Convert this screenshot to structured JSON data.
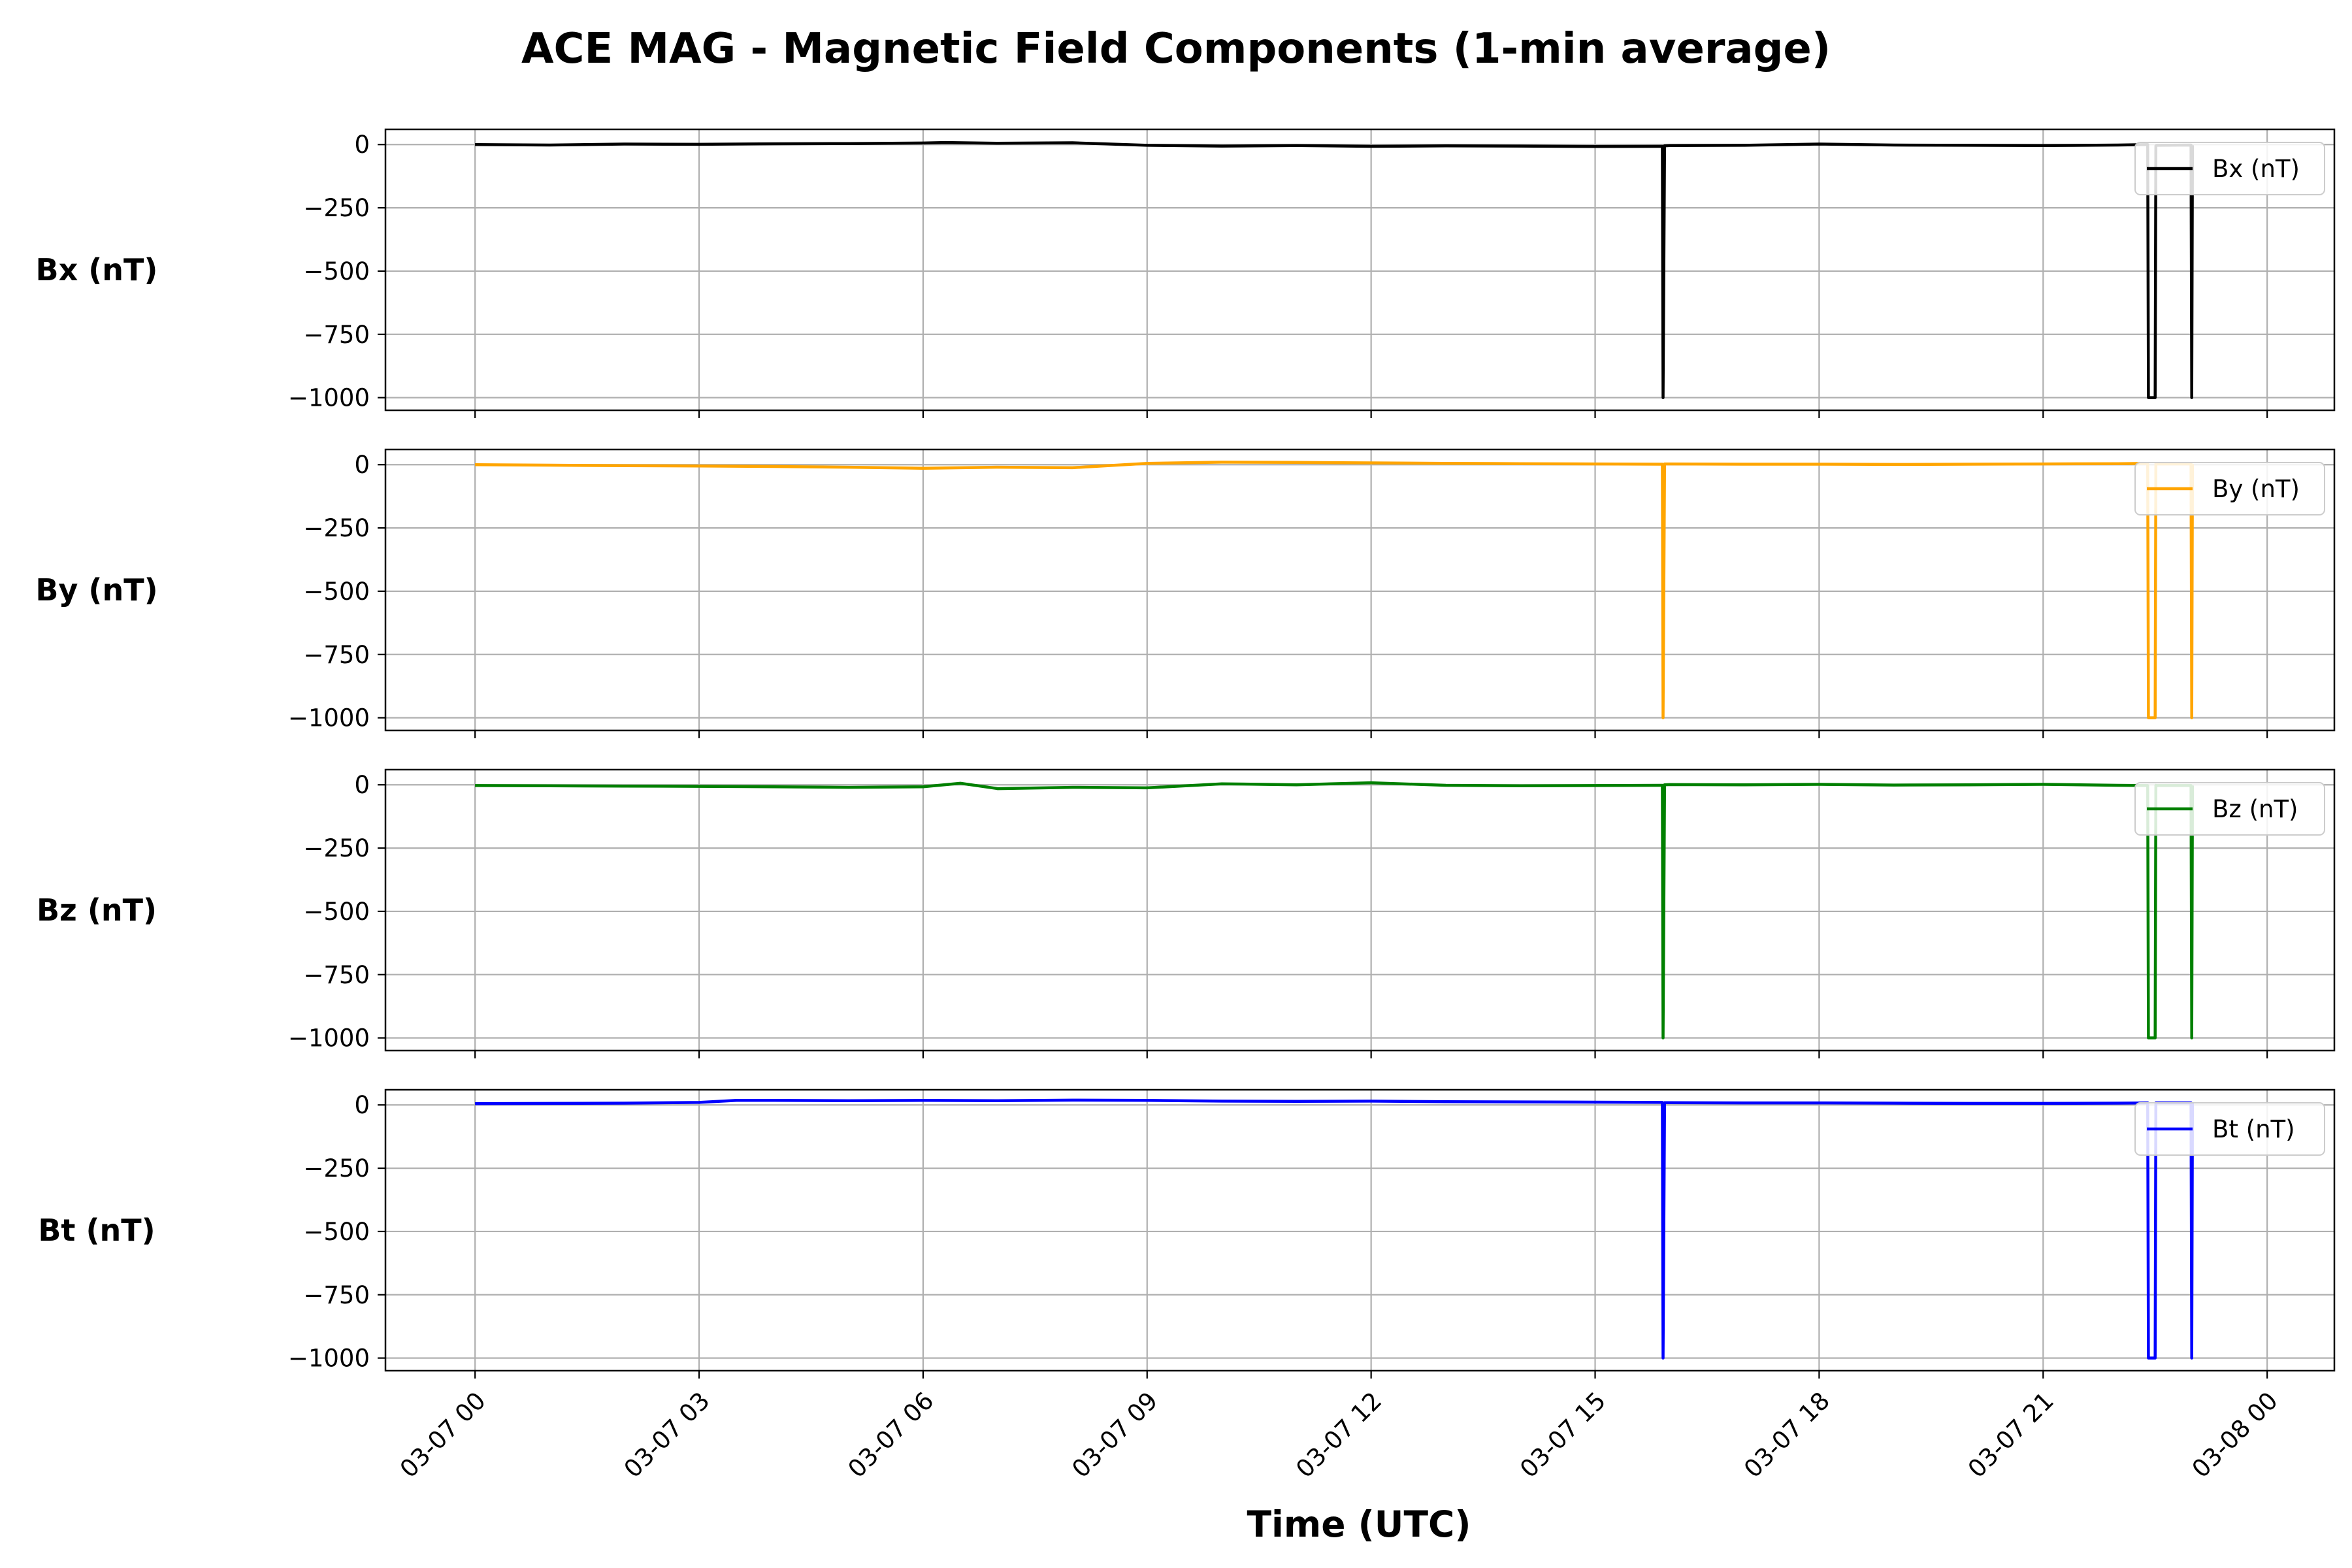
{
  "chart_data": {
    "type": "line",
    "title": "ACE MAG - Magnetic Field Components (1-min average)",
    "xlabel": "Time (UTC)",
    "x_ticks": [
      "03-07 00",
      "03-07 03",
      "03-07 06",
      "03-07 09",
      "03-07 12",
      "03-07 15",
      "03-07 18",
      "03-07 21",
      "03-08 00"
    ],
    "x_range_hours": [
      -1.2,
      24.9
    ],
    "y_ticks": [
      0,
      -250,
      -500,
      -750,
      -1000
    ],
    "ylim": [
      -1050,
      60
    ],
    "grid": true,
    "legend_position": "upper right",
    "panels": [
      {
        "ylabel": "Bx (nT)",
        "color": "#000000",
        "series": [
          {
            "name": "Bx (nT)",
            "x_hours": [
              0,
              1,
              2,
              3,
              4,
              5,
              6,
              6.3,
              7,
              8,
              9,
              10,
              11,
              12,
              13,
              14,
              15,
              15.9,
              15.91,
              15.93,
              16,
              17,
              18,
              19,
              20,
              21,
              22,
              22.4,
              22.41,
              22.5,
              22.51,
              22.52,
              22.98,
              22.99,
              23.0
            ],
            "values": [
              0,
              -2,
              2,
              1,
              3,
              4,
              6,
              8,
              5,
              7,
              -3,
              -6,
              -4,
              -7,
              -5,
              -6,
              -8,
              -7,
              -1000,
              -5,
              -4,
              -3,
              2,
              -2,
              -3,
              -4,
              -2,
              0,
              -1000,
              -1000,
              -5,
              -3,
              -2,
              -1000,
              -3
            ]
          }
        ]
      },
      {
        "ylabel": "By (nT)",
        "color": "#ffa500",
        "series": [
          {
            "name": "By (nT)",
            "x_hours": [
              0,
              1,
              2,
              3,
              4,
              5,
              6,
              7,
              8,
              9,
              10,
              11,
              12,
              13,
              14,
              15,
              15.9,
              15.91,
              15.93,
              16,
              17,
              18,
              19,
              20,
              21,
              22,
              22.4,
              22.41,
              22.5,
              22.51,
              22.52,
              22.98,
              22.99,
              23.0
            ],
            "values": [
              0,
              -2,
              -4,
              -5,
              -7,
              -10,
              -14,
              -10,
              -12,
              5,
              10,
              9,
              7,
              5,
              4,
              3,
              2,
              -1000,
              3,
              3,
              2,
              2,
              1,
              2,
              3,
              4,
              5,
              -1000,
              -1000,
              4,
              3,
              3,
              -1000,
              3
            ]
          }
        ]
      },
      {
        "ylabel": "Bz (nT)",
        "color": "#008000",
        "series": [
          {
            "name": "Bz (nT)",
            "x_hours": [
              0,
              1,
              2,
              3,
              4,
              5,
              6,
              6.5,
              7,
              8,
              9,
              10,
              11,
              12,
              13,
              14,
              15,
              15.9,
              15.91,
              15.93,
              16,
              17,
              18,
              19,
              20,
              21,
              22,
              22.4,
              22.41,
              22.5,
              22.51,
              22.52,
              22.98,
              22.99,
              23.0
            ],
            "values": [
              -3,
              -4,
              -5,
              -6,
              -8,
              -10,
              -8,
              6,
              -15,
              -10,
              -12,
              4,
              0,
              8,
              -2,
              -4,
              -3,
              -2,
              -1000,
              0,
              1,
              0,
              2,
              -1,
              0,
              2,
              -2,
              -3,
              -1000,
              -1000,
              -2,
              -3,
              -3,
              -1000,
              -3
            ]
          }
        ]
      },
      {
        "ylabel": "Bt (nT)",
        "color": "#0000ff",
        "series": [
          {
            "name": "Bt (nT)",
            "x_hours": [
              0,
              1,
              2,
              3,
              3.5,
              4,
              5,
              6,
              7,
              8,
              9,
              10,
              11,
              12,
              13,
              14,
              15,
              15.9,
              15.91,
              15.93,
              16,
              17,
              18,
              19,
              20,
              21,
              22,
              22.4,
              22.41,
              22.5,
              22.51,
              22.52,
              22.98,
              22.99,
              23.0
            ],
            "values": [
              5,
              6,
              7,
              10,
              18,
              18,
              17,
              18,
              17,
              19,
              18,
              15,
              14,
              15,
              13,
              12,
              11,
              10,
              -1000,
              9,
              9,
              8,
              8,
              7,
              6,
              6,
              7,
              8,
              -1000,
              -1000,
              8,
              8,
              8,
              -1000,
              8
            ]
          }
        ]
      }
    ]
  }
}
